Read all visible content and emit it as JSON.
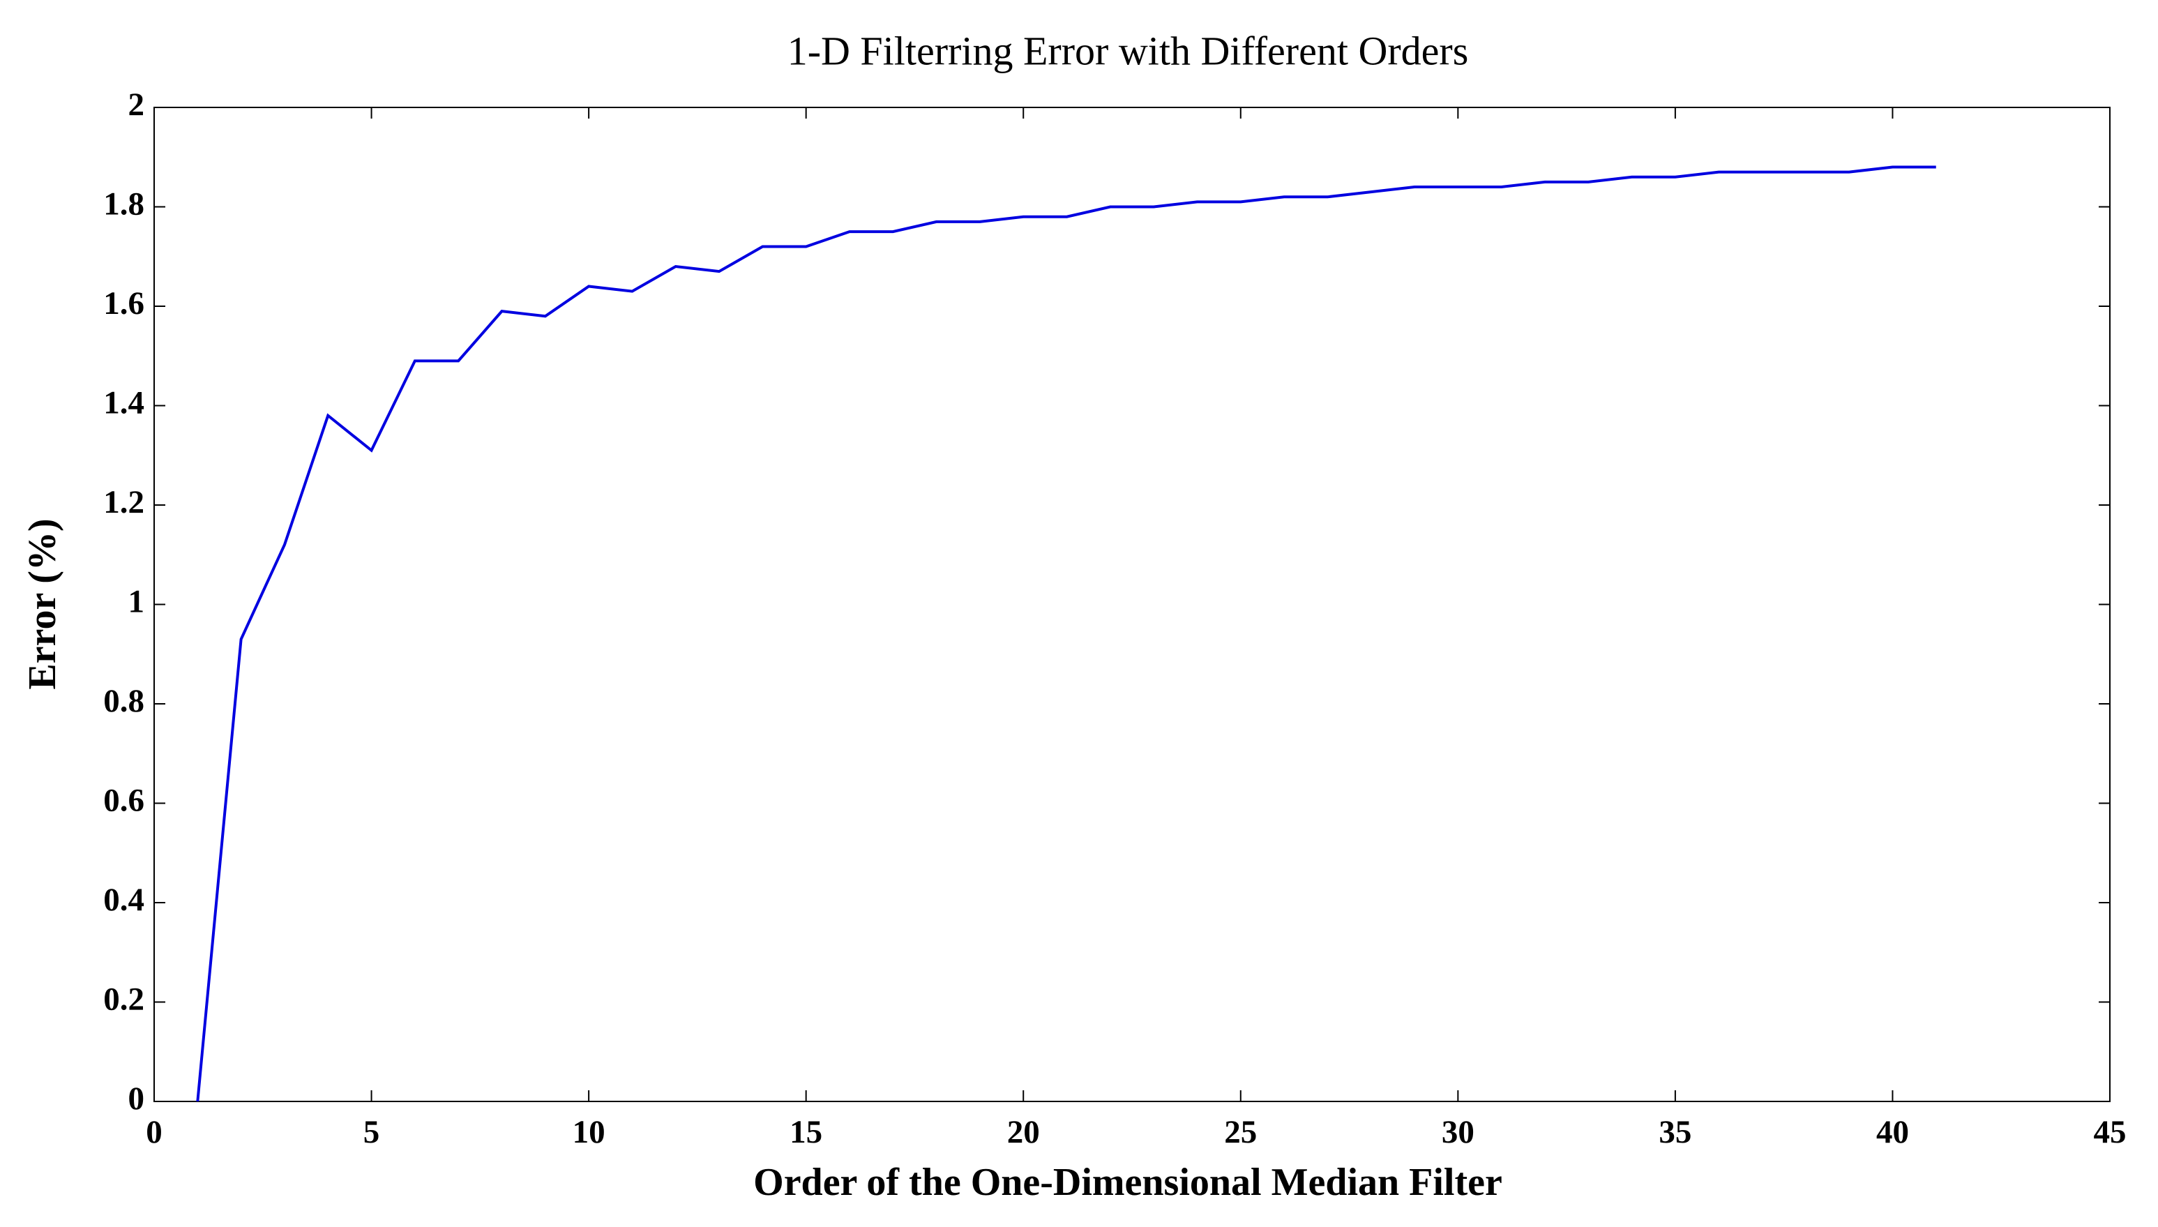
{
  "chart_data": {
    "type": "line",
    "title": "1-D Filterring Error with Different Orders",
    "x_label": "Order of the One-Dimensional Median Filter",
    "y_label": "Error (%)",
    "x": [
      1,
      2,
      3,
      4,
      5,
      6,
      7,
      8,
      9,
      10,
      11,
      12,
      13,
      14,
      15,
      16,
      17,
      18,
      19,
      20,
      21,
      22,
      23,
      24,
      25,
      26,
      27,
      28,
      29,
      30,
      31,
      32,
      33,
      34,
      35,
      36,
      37,
      38,
      39,
      40,
      41
    ],
    "series": [
      {
        "name": "Error",
        "color": "#0000e0",
        "values": [
          0,
          0.93,
          1.12,
          1.38,
          1.31,
          1.49,
          1.49,
          1.59,
          1.58,
          1.64,
          1.63,
          1.68,
          1.67,
          1.72,
          1.72,
          1.75,
          1.75,
          1.77,
          1.77,
          1.78,
          1.78,
          1.8,
          1.8,
          1.81,
          1.81,
          1.82,
          1.82,
          1.83,
          1.84,
          1.84,
          1.84,
          1.85,
          1.85,
          1.86,
          1.86,
          1.87,
          1.87,
          1.87,
          1.87,
          1.88,
          1.88
        ]
      }
    ],
    "xlim": [
      0,
      45
    ],
    "xticks": [
      0,
      5,
      10,
      15,
      20,
      25,
      30,
      35,
      40,
      45
    ],
    "ylim": [
      0,
      2
    ],
    "yticks": [
      0,
      0.2,
      0.4,
      0.6,
      0.8,
      1,
      1.2,
      1.4,
      1.6,
      1.8,
      2
    ],
    "grid": false
  }
}
